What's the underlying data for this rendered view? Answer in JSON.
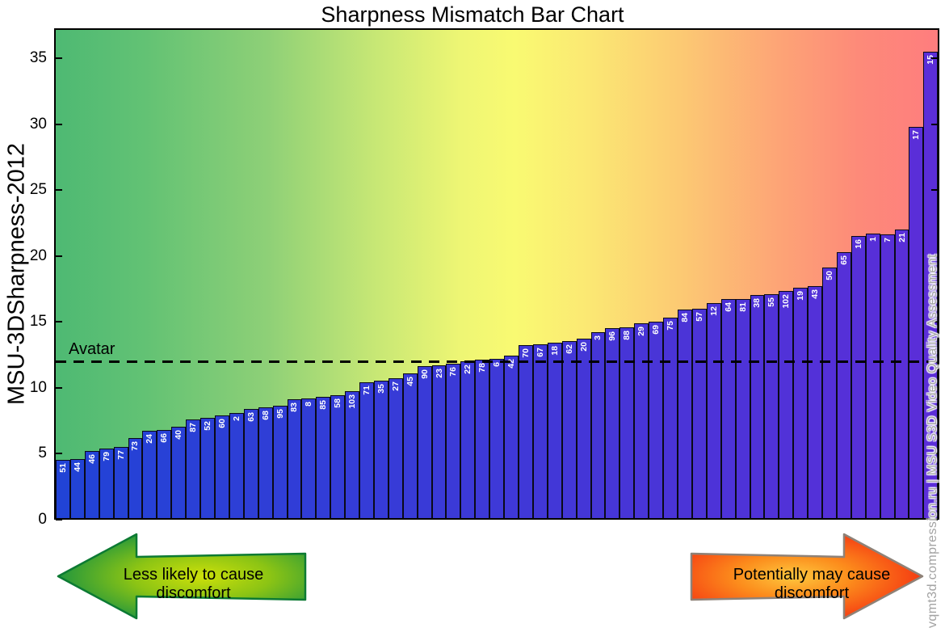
{
  "title": "Sharpness Mismatch Bar Chart",
  "y_axis": {
    "label": "MSU-3DSharpness-2012",
    "ticks": [
      0,
      5,
      10,
      15,
      20,
      25,
      30,
      35
    ]
  },
  "chart_data": {
    "type": "bar",
    "title": "Sharpness Mismatch Bar Chart",
    "xlabel": "",
    "ylabel": "MSU-3DSharpness-2012",
    "ylim": [
      0,
      37
    ],
    "grid": false,
    "legend": "none",
    "categories": [
      "51",
      "44",
      "46",
      "79",
      "77",
      "73",
      "24",
      "66",
      "40",
      "87",
      "52",
      "60",
      "2",
      "63",
      "68",
      "95",
      "83",
      "8",
      "85",
      "58",
      "103",
      "71",
      "35",
      "27",
      "45",
      "90",
      "23",
      "76",
      "22",
      "78",
      "6",
      "42",
      "70",
      "67",
      "18",
      "62",
      "20",
      "3",
      "96",
      "88",
      "29",
      "69",
      "75",
      "84",
      "57",
      "12",
      "64",
      "81",
      "38",
      "55",
      "102",
      "19",
      "43",
      "50",
      "65",
      "16",
      "1",
      "7",
      "21",
      "17",
      "15"
    ],
    "values": [
      4.4,
      4.5,
      5.1,
      5.3,
      5.4,
      6.1,
      6.6,
      6.7,
      6.9,
      7.5,
      7.6,
      7.8,
      8.0,
      8.3,
      8.4,
      8.5,
      9.0,
      9.1,
      9.2,
      9.3,
      9.6,
      10.3,
      10.4,
      10.6,
      11.0,
      11.5,
      11.6,
      11.7,
      11.9,
      12.0,
      12.1,
      12.3,
      13.1,
      13.2,
      13.3,
      13.4,
      13.6,
      14.1,
      14.4,
      14.5,
      14.8,
      14.9,
      15.2,
      15.8,
      15.9,
      16.3,
      16.6,
      16.6,
      16.9,
      17.0,
      17.2,
      17.5,
      17.6,
      19.0,
      20.2,
      21.4,
      21.6,
      21.5,
      21.9,
      29.7,
      35.4
    ],
    "reference_line": {
      "label": "Avatar",
      "value": 12.1
    }
  },
  "arrows": {
    "left_label": "Less likely to cause discomfort",
    "right_label": "Potentially may cause discomfort"
  },
  "watermark": "vqmt3d.compression.ru | MSU S3D Video Quality Assessment",
  "colors": {
    "bar_start": "#2143d6",
    "bar_end": "#5b2ed8",
    "bar_border": "#0a0a18",
    "background_left": "#4eb973",
    "background_mid": "#f9fa72",
    "background_right": "#fe7d7e",
    "arrow_left_edge": "#149042",
    "arrow_left_center": "#cde00a",
    "arrow_right_edge": "#f42b10",
    "arrow_right_center": "#fec83f",
    "watermark_text": "#a3a3a3"
  }
}
